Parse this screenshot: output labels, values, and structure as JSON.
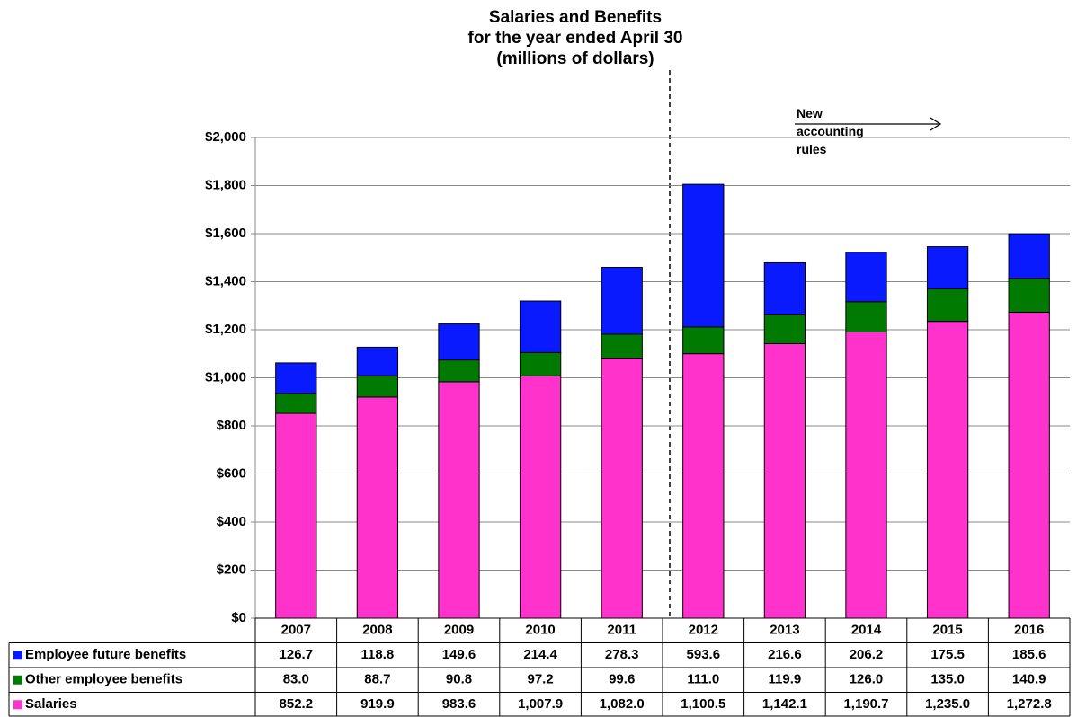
{
  "chart_data": {
    "type": "stacked_bar",
    "title": [
      "Salaries and Benefits",
      "for the year ended April 30",
      "(millions of dollars)"
    ],
    "annotation": "New accounting rules",
    "categories": [
      "2007",
      "2008",
      "2009",
      "2010",
      "2011",
      "2012",
      "2013",
      "2014",
      "2015",
      "2016"
    ],
    "series": [
      {
        "name": "Employee future benefits",
        "color": "#0a1aff",
        "values": [
          126.7,
          118.8,
          149.6,
          214.4,
          278.3,
          593.6,
          216.6,
          206.2,
          175.5,
          185.6
        ],
        "value_labels": [
          "126.7",
          "118.8",
          "149.6",
          "214.4",
          "278.3",
          "593.6",
          "216.6",
          "206.2",
          "175.5",
          "185.6"
        ]
      },
      {
        "name": "Other employee benefits",
        "color": "#007a00",
        "values": [
          83.0,
          88.7,
          90.8,
          97.2,
          99.6,
          111.0,
          119.9,
          126.0,
          135.0,
          140.9
        ],
        "value_labels": [
          "83.0",
          "88.7",
          "90.8",
          "97.2",
          "99.6",
          "111.0",
          "119.9",
          "126.0",
          "135.0",
          "140.9"
        ]
      },
      {
        "name": "Salaries",
        "color": "#ff33cc",
        "values": [
          852.2,
          919.9,
          983.6,
          1007.9,
          1082.0,
          1100.5,
          1142.1,
          1190.7,
          1235.0,
          1272.8
        ],
        "value_labels": [
          "852.2",
          "919.9",
          "983.6",
          "1,007.9",
          "1,082.0",
          "1,100.5",
          "1,142.1",
          "1,190.7",
          "1,235.0",
          "1,272.8"
        ]
      }
    ],
    "ylim": [
      0,
      2000
    ],
    "yticks": [
      {
        "value": 0,
        "label": "$0"
      },
      {
        "value": 200,
        "label": "$200"
      },
      {
        "value": 400,
        "label": "$400"
      },
      {
        "value": 600,
        "label": "$600"
      },
      {
        "value": 800,
        "label": "$800"
      },
      {
        "value": 1000,
        "label": "$1,000"
      },
      {
        "value": 1200,
        "label": "$1,200"
      },
      {
        "value": 1400,
        "label": "$1,400"
      },
      {
        "value": 1600,
        "label": "$1,600"
      },
      {
        "value": 1800,
        "label": "$1,800"
      },
      {
        "value": 2000,
        "label": "$2,000"
      }
    ],
    "grid": true
  }
}
